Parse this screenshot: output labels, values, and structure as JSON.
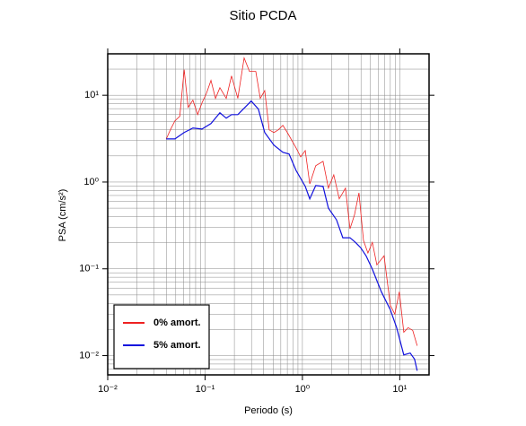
{
  "chart_data": {
    "type": "line",
    "title": "Sitio PCDA",
    "x_label": "Periodo (s)",
    "y_label": "PSA (cm/s²)",
    "log_x": true,
    "log_y": true,
    "grid": true,
    "legend_position": "lower left",
    "xlim": [
      0.01,
      20
    ],
    "ylim": [
      0.006,
      30
    ],
    "xticks": [
      {
        "value": 0.01,
        "label": "10⁻²"
      },
      {
        "value": 0.1,
        "label": "10⁻¹"
      },
      {
        "value": 1,
        "label": "10⁰"
      },
      {
        "value": 10,
        "label": "10¹"
      }
    ],
    "yticks": [
      {
        "value": 0.01,
        "label": "10⁻²"
      },
      {
        "value": 0.1,
        "label": "10⁻¹"
      },
      {
        "value": 1,
        "label": "10⁰"
      },
      {
        "value": 10,
        "label": "10¹"
      }
    ],
    "series": [
      {
        "name": "0% amort.",
        "color": "#ee2222",
        "x": [
          0.04,
          0.044,
          0.049,
          0.055,
          0.061,
          0.067,
          0.075,
          0.084,
          0.093,
          0.103,
          0.115,
          0.128,
          0.142,
          0.165,
          0.187,
          0.217,
          0.252,
          0.286,
          0.332,
          0.369,
          0.41,
          0.456,
          0.51,
          0.564,
          0.63,
          0.7,
          0.86,
          0.96,
          1.07,
          1.19,
          1.37,
          1.63,
          1.85,
          2.1,
          2.39,
          2.77,
          3.08,
          3.42,
          3.81,
          4.24,
          4.71,
          5.23,
          5.82,
          6.9,
          8.0,
          8.9,
          9.9,
          11.0,
          12.2,
          13.6,
          15.1
        ],
        "values": [
          3.14,
          3.99,
          5.07,
          5.71,
          19.7,
          7.25,
          8.77,
          5.98,
          8.17,
          10.4,
          14.8,
          9.2,
          12.2,
          9.2,
          16.7,
          9.2,
          26.9,
          18.8,
          18.8,
          9.2,
          11.3,
          3.99,
          3.72,
          3.99,
          4.5,
          3.72,
          2.48,
          1.95,
          2.3,
          0.95,
          1.54,
          1.73,
          0.85,
          1.21,
          0.64,
          0.85,
          0.289,
          0.414,
          0.75,
          0.212,
          0.152,
          0.202,
          0.111,
          0.141,
          0.038,
          0.03,
          0.0544,
          0.0186,
          0.021,
          0.0195,
          0.013
        ]
      },
      {
        "name": "5% amort.",
        "color": "#1111dd",
        "x": [
          0.04,
          0.049,
          0.061,
          0.075,
          0.093,
          0.115,
          0.142,
          0.165,
          0.187,
          0.217,
          0.252,
          0.298,
          0.353,
          0.41,
          0.51,
          0.63,
          0.73,
          0.86,
          1.07,
          1.19,
          1.37,
          1.63,
          1.85,
          2.24,
          2.6,
          3.08,
          3.5,
          3.97,
          4.51,
          5.23,
          6.47,
          8.0,
          9.29,
          11.0,
          12.8,
          14.2,
          15.1
        ],
        "values": [
          3.14,
          3.14,
          3.72,
          4.19,
          4.08,
          4.72,
          6.28,
          5.44,
          5.98,
          5.98,
          7.08,
          8.57,
          6.91,
          3.72,
          2.66,
          2.2,
          2.1,
          1.36,
          0.89,
          0.64,
          0.91,
          0.89,
          0.5,
          0.367,
          0.228,
          0.228,
          0.202,
          0.175,
          0.141,
          0.099,
          0.0544,
          0.0338,
          0.021,
          0.0102,
          0.0107,
          0.0091,
          0.0067
        ]
      }
    ]
  }
}
